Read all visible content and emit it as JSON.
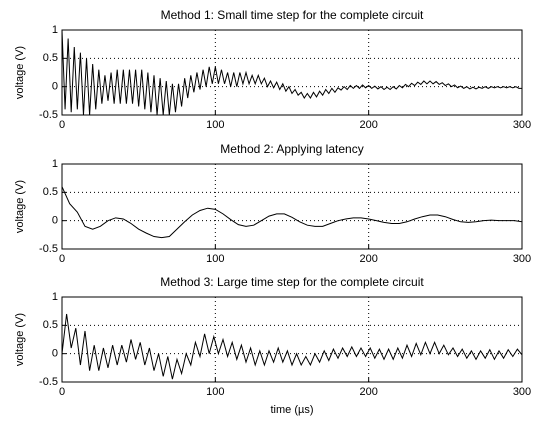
{
  "chart_data": [
    {
      "type": "line",
      "title": "Method 1: Small time step for the complete circuit",
      "ylabel": "voltage (V)",
      "color": "#000000",
      "xlim": [
        0,
        300
      ],
      "xticks": [
        0,
        100,
        200,
        300
      ],
      "ylim": [
        -0.5,
        1
      ],
      "yticks": [
        -0.5,
        0,
        0.5,
        1
      ],
      "grid": true,
      "x": [
        0,
        2,
        4,
        6,
        8,
        10,
        12,
        14,
        16,
        18,
        20,
        22,
        24,
        26,
        28,
        30,
        32,
        34,
        36,
        38,
        40,
        42,
        44,
        46,
        48,
        50,
        52,
        54,
        56,
        58,
        60,
        62,
        64,
        66,
        68,
        70,
        72,
        74,
        76,
        78,
        80,
        82,
        84,
        86,
        88,
        90,
        92,
        94,
        96,
        98,
        100,
        102,
        104,
        106,
        108,
        110,
        112,
        114,
        116,
        118,
        120,
        122,
        124,
        126,
        128,
        130,
        132,
        134,
        136,
        138,
        140,
        142,
        144,
        146,
        148,
        150,
        152,
        154,
        156,
        158,
        160,
        162,
        164,
        166,
        168,
        170,
        172,
        174,
        176,
        178,
        180,
        182,
        184,
        186,
        188,
        190,
        192,
        194,
        196,
        198,
        200,
        202,
        204,
        206,
        208,
        210,
        212,
        214,
        216,
        218,
        220,
        222,
        224,
        226,
        228,
        230,
        232,
        234,
        236,
        238,
        240,
        242,
        244,
        246,
        248,
        250,
        252,
        254,
        256,
        258,
        260,
        262,
        264,
        266,
        268,
        270,
        272,
        274,
        276,
        278,
        280,
        282,
        284,
        286,
        288,
        290,
        292,
        294,
        296,
        298,
        300
      ],
      "values": [
        1.0,
        -0.4,
        0.85,
        -0.45,
        0.7,
        -0.4,
        0.6,
        -0.5,
        0.5,
        -0.5,
        0.4,
        -0.4,
        0.3,
        -0.3,
        0.2,
        -0.25,
        0.25,
        -0.3,
        0.3,
        -0.3,
        0.3,
        -0.3,
        0.3,
        -0.3,
        0.3,
        -0.35,
        0.3,
        -0.4,
        0.25,
        -0.45,
        0.2,
        -0.5,
        0.15,
        -0.5,
        0.1,
        -0.5,
        0.05,
        -0.45,
        0.05,
        -0.35,
        0.15,
        -0.2,
        0.2,
        -0.1,
        0.25,
        -0.05,
        0.3,
        0,
        0.35,
        0.05,
        0.35,
        0.05,
        0.3,
        0.05,
        0.25,
        0,
        0.25,
        0,
        0.25,
        0.05,
        0.25,
        0.05,
        0.2,
        0.05,
        0.2,
        0.05,
        0.15,
        0,
        0.1,
        -0.02,
        0.08,
        -0.05,
        0.05,
        -0.08,
        0,
        -0.12,
        -0.05,
        -0.15,
        -0.1,
        -0.2,
        -0.12,
        -0.2,
        -0.1,
        -0.18,
        -0.08,
        -0.15,
        -0.05,
        -0.12,
        -0.03,
        -0.1,
        -0.02,
        -0.06,
        0,
        -0.05,
        0.02,
        -0.03,
        0.02,
        -0.03,
        0.03,
        -0.02,
        0.02,
        -0.03,
        0.01,
        -0.04,
        0,
        -0.05,
        -0.01,
        -0.05,
        0,
        -0.04,
        0.02,
        -0.02,
        0.04,
        0,
        0.06,
        0.02,
        0.08,
        0.04,
        0.1,
        0.05,
        0.1,
        0.05,
        0.09,
        0.04,
        0.07,
        0.02,
        0.05,
        0,
        0.03,
        -0.02,
        0.01,
        -0.03,
        0,
        -0.04,
        -0.01,
        -0.04,
        -0.01,
        -0.03,
        0,
        -0.03,
        0,
        -0.02,
        0,
        -0.02,
        0,
        -0.02,
        0,
        -0.02,
        0,
        -0.03,
        -0.03
      ]
    },
    {
      "type": "line",
      "title": "Method 2: Applying latency",
      "ylabel": "voltage (V)",
      "color": "#000000",
      "xlim": [
        0,
        300
      ],
      "xticks": [
        0,
        100,
        200,
        300
      ],
      "ylim": [
        -0.5,
        1
      ],
      "yticks": [
        -0.5,
        0,
        0.5,
        1
      ],
      "grid": true,
      "x": [
        0,
        5,
        10,
        15,
        20,
        25,
        30,
        35,
        40,
        45,
        50,
        55,
        60,
        65,
        70,
        75,
        80,
        85,
        90,
        95,
        100,
        105,
        110,
        115,
        120,
        125,
        130,
        135,
        140,
        145,
        150,
        155,
        160,
        165,
        170,
        175,
        180,
        185,
        190,
        195,
        200,
        205,
        210,
        215,
        220,
        225,
        230,
        235,
        240,
        245,
        250,
        255,
        260,
        265,
        270,
        275,
        280,
        285,
        290,
        295,
        300
      ],
      "values": [
        0.6,
        0.3,
        0.15,
        -0.1,
        -0.15,
        -0.1,
        0,
        0.05,
        0.03,
        -0.05,
        -0.15,
        -0.22,
        -0.28,
        -0.3,
        -0.28,
        -0.15,
        -0.02,
        0.1,
        0.18,
        0.22,
        0.2,
        0.12,
        0.02,
        -0.07,
        -0.1,
        -0.08,
        0,
        0.08,
        0.12,
        0.12,
        0.06,
        -0.02,
        -0.08,
        -0.1,
        -0.1,
        -0.05,
        0,
        0.03,
        0.05,
        0.05,
        0.03,
        0,
        -0.03,
        -0.05,
        -0.05,
        -0.02,
        0.03,
        0.07,
        0.1,
        0.1,
        0.07,
        0.02,
        -0.02,
        -0.03,
        -0.02,
        0,
        0.01,
        0,
        0,
        0,
        -0.02
      ]
    },
    {
      "type": "line",
      "title": "Method 3: Large time step for the complete circuit",
      "ylabel": "voltage (V)",
      "xlabel": "time (µs)",
      "color": "#000000",
      "xlim": [
        0,
        300
      ],
      "xticks": [
        0,
        100,
        200,
        300
      ],
      "ylim": [
        -0.5,
        1
      ],
      "yticks": [
        -0.5,
        0,
        0.5,
        1
      ],
      "grid": true,
      "x": [
        0,
        3,
        6,
        9,
        12,
        15,
        18,
        21,
        24,
        27,
        30,
        33,
        36,
        39,
        42,
        45,
        48,
        51,
        54,
        57,
        60,
        63,
        66,
        69,
        72,
        75,
        78,
        81,
        84,
        87,
        90,
        93,
        96,
        99,
        102,
        105,
        108,
        111,
        114,
        117,
        120,
        123,
        126,
        129,
        132,
        135,
        138,
        141,
        144,
        147,
        150,
        153,
        156,
        159,
        162,
        165,
        168,
        171,
        174,
        177,
        180,
        183,
        186,
        189,
        192,
        195,
        198,
        201,
        204,
        207,
        210,
        213,
        216,
        219,
        222,
        225,
        228,
        231,
        234,
        237,
        240,
        243,
        246,
        249,
        252,
        255,
        258,
        261,
        264,
        267,
        270,
        273,
        276,
        279,
        282,
        285,
        288,
        291,
        294,
        297,
        300
      ],
      "values": [
        0,
        0.7,
        0.1,
        0.45,
        -0.2,
        0.4,
        -0.3,
        0.15,
        -0.3,
        0.1,
        -0.25,
        0.15,
        -0.2,
        0.15,
        -0.15,
        0.25,
        -0.1,
        0.2,
        -0.2,
        0.1,
        -0.3,
        0,
        -0.4,
        -0.05,
        -0.45,
        -0.1,
        -0.35,
        0,
        -0.2,
        0.2,
        -0.05,
        0.35,
        0,
        0.3,
        0,
        0.25,
        -0.05,
        0.2,
        -0.1,
        0.15,
        -0.15,
        0.1,
        -0.2,
        0.05,
        -0.2,
        0.05,
        -0.15,
        0.1,
        -0.15,
        0.05,
        -0.2,
        0,
        -0.2,
        -0.05,
        -0.2,
        0,
        -0.15,
        0.05,
        -0.12,
        0.08,
        -0.08,
        0.1,
        -0.05,
        0.12,
        -0.05,
        0.1,
        -0.05,
        0.1,
        -0.08,
        0.08,
        -0.1,
        0.08,
        -0.1,
        0.1,
        -0.08,
        0.15,
        -0.05,
        0.18,
        -0.02,
        0.2,
        0,
        0.2,
        0,
        0.15,
        -0.02,
        0.1,
        -0.05,
        0.08,
        -0.08,
        0.05,
        -0.1,
        0.05,
        -0.08,
        0.07,
        -0.1,
        0.05,
        -0.08,
        0.07,
        -0.05,
        0.08,
        -0.02
      ]
    }
  ]
}
